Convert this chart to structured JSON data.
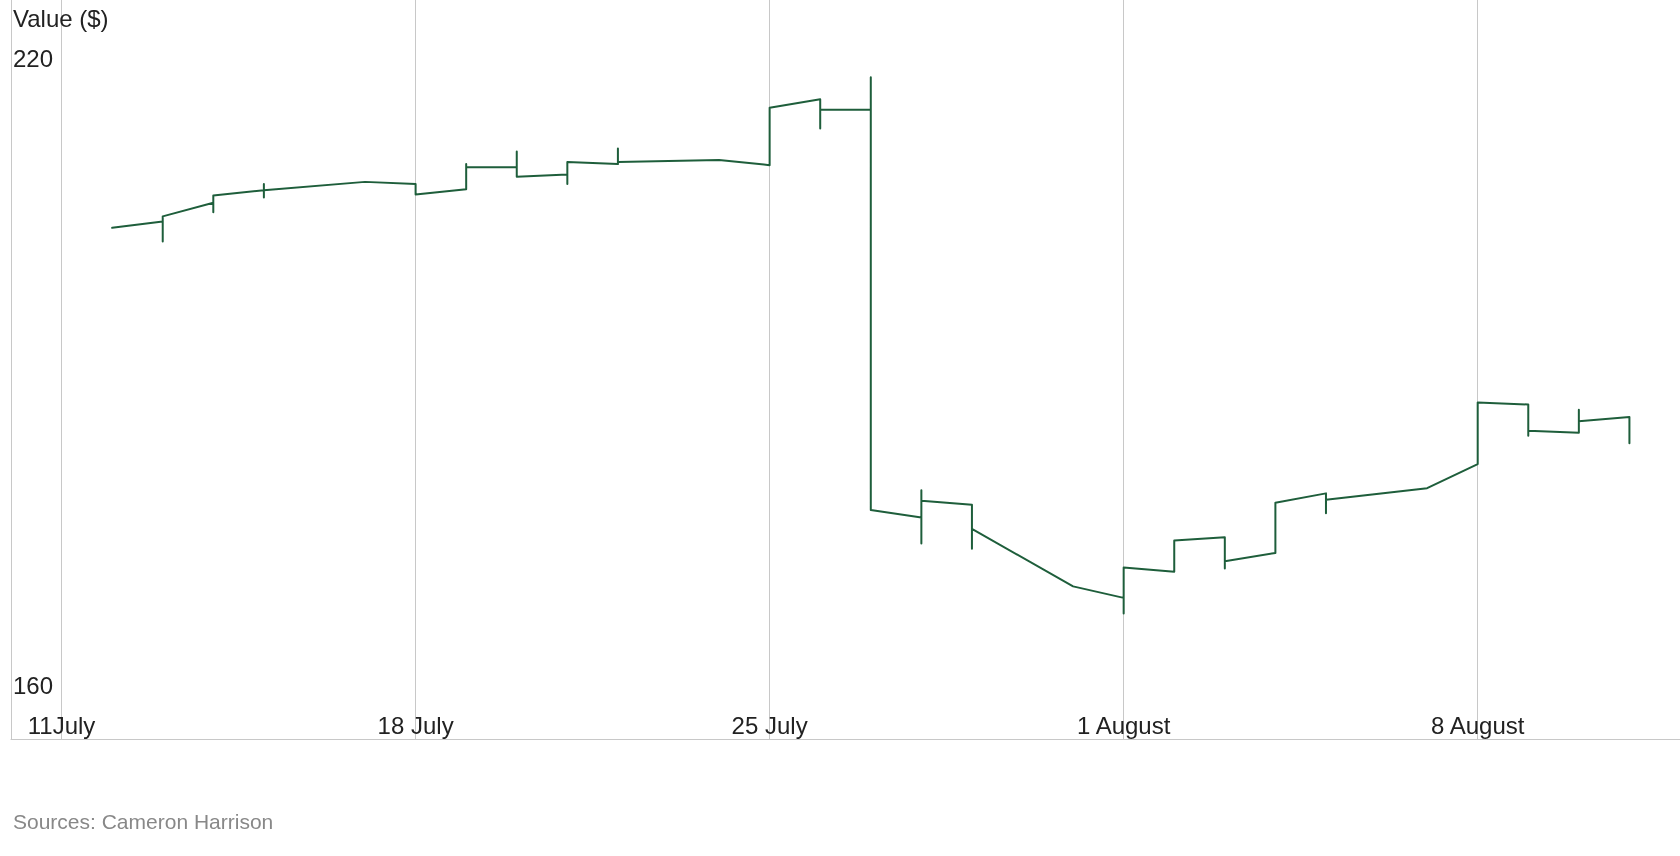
{
  "chart_data": {
    "type": "line",
    "ylabel": "Value ($)",
    "annotations": [
      "Sources: Cameron Harrison"
    ],
    "xlim": [
      "--07-10",
      "--08-12"
    ],
    "xticks": [
      {
        "value": "--07-11",
        "label": "11July"
      },
      {
        "value": "--07-18",
        "label": "18 July"
      },
      {
        "value": "--07-25",
        "label": "25 July"
      },
      {
        "value": "--08-01",
        "label": "1 August"
      },
      {
        "value": "--08-08",
        "label": "8 August"
      }
    ],
    "ylim": [
      154.9,
      225.6
    ],
    "yticks": [
      160,
      220
    ],
    "grid": "x",
    "marker": "none",
    "line_style": "solid",
    "series": [
      {
        "color": "#1e5e3b",
        "x": [
          "--07-12",
          "--07-13",
          "--07-13",
          "--07-13",
          "--07-14",
          "--07-14",
          "--07-14",
          "--07-15",
          "--07-15",
          "--07-15",
          "--07-15",
          "--07-17",
          "--07-18",
          "--07-18",
          "--07-19",
          "--07-19",
          "--07-19",
          "--07-20",
          "--07-20",
          "--07-20",
          "--07-21",
          "--07-21",
          "--07-21",
          "--07-22",
          "--07-22",
          "--07-22",
          "--07-24",
          "--07-25",
          "--07-25",
          "--07-26",
          "--07-26",
          "--07-26",
          "--07-27",
          "--07-27",
          "--07-27",
          "--07-28",
          "--07-28",
          "--07-28",
          "--07-28",
          "--07-29",
          "--07-29",
          "--07-29",
          "--07-31",
          "--08-01",
          "--08-01",
          "--08-01",
          "--08-02",
          "--08-02",
          "--08-03",
          "--08-03",
          "--08-03",
          "--08-04",
          "--08-04",
          "--08-05",
          "--08-05",
          "--08-05",
          "--08-07",
          "--08-08",
          "--08-08",
          "--08-09",
          "--08-09",
          "--08-09",
          "--08-10",
          "--08-10",
          "--08-10",
          "--08-11",
          "--08-11"
        ],
        "values": [
          203.8,
          204.4,
          202.5,
          204.9,
          206.2,
          205.3,
          206.9,
          207.4,
          208.0,
          206.7,
          207.4,
          208.2,
          208.0,
          207.0,
          207.5,
          209.9,
          209.6,
          209.6,
          211.1,
          208.7,
          208.9,
          208.0,
          210.1,
          209.9,
          211.4,
          210.1,
          210.3,
          209.8,
          215.3,
          216.1,
          213.3,
          215.1,
          215.1,
          218.2,
          176.8,
          176.1,
          173.6,
          178.7,
          177.7,
          177.3,
          173.1,
          175.0,
          169.5,
          168.4,
          166.9,
          171.3,
          170.9,
          173.9,
          174.2,
          171.2,
          171.9,
          172.7,
          177.5,
          178.4,
          176.5,
          177.8,
          178.9,
          181.2,
          187.1,
          186.9,
          183.9,
          184.4,
          184.2,
          186.4,
          185.3,
          185.7,
          183.2
        ]
      }
    ]
  }
}
